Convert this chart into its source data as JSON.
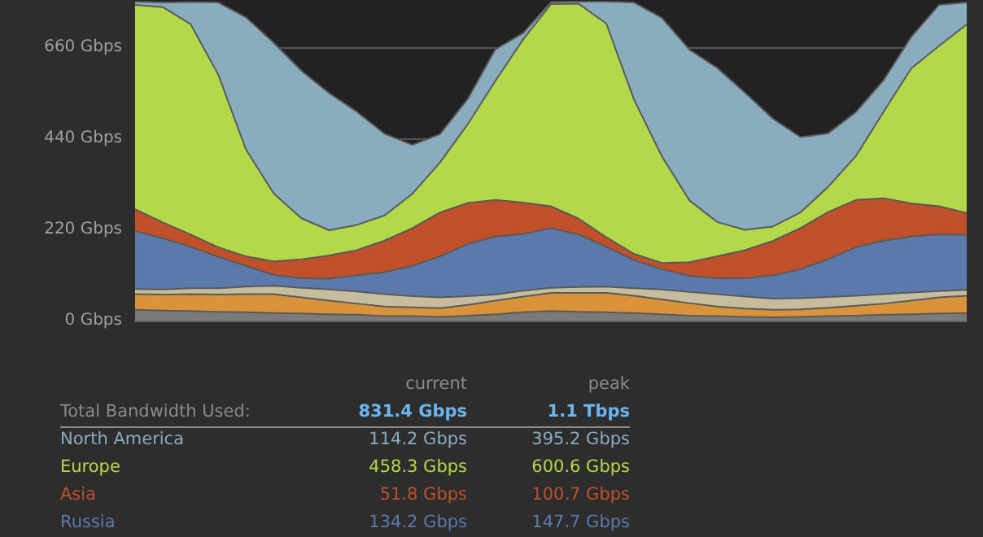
{
  "chart_data": {
    "type": "area",
    "stacked": true,
    "legend": false,
    "grid": "y",
    "tick_labels": "y",
    "marker": "none",
    "categories": [
      null,
      null,
      null,
      null,
      null,
      null,
      null,
      null,
      null,
      null,
      null,
      null,
      null,
      null,
      null,
      null,
      null,
      null,
      null,
      null,
      null,
      null,
      null,
      null,
      null,
      null,
      null,
      null,
      null,
      null,
      null
    ],
    "ylim": [
      0,
      774
    ],
    "yticks": [
      {
        "value": 0,
        "label": "0 Gbps"
      },
      {
        "value": 220,
        "label": "220 Gbps"
      },
      {
        "value": 440,
        "label": "440 Gbps"
      },
      {
        "value": 660,
        "label": "660 Gbps"
      }
    ],
    "series": [
      {
        "color": "#7a7a7a",
        "values": [
          26,
          24,
          23,
          21,
          20,
          18,
          17,
          15,
          14,
          11,
          11,
          9,
          12,
          15,
          20,
          23,
          21,
          20,
          18,
          15,
          12,
          11,
          9,
          8,
          9,
          11,
          12,
          14,
          15,
          17,
          18
        ]
      },
      {
        "color": "#d9933a",
        "values": [
          38,
          39,
          41,
          42,
          44,
          46,
          39,
          33,
          27,
          23,
          21,
          21,
          26,
          33,
          38,
          44,
          46,
          47,
          42,
          36,
          30,
          23,
          20,
          18,
          18,
          20,
          24,
          27,
          33,
          39,
          42
        ]
      },
      {
        "color": "#c5bd9d",
        "values": [
          12,
          12,
          14,
          15,
          18,
          20,
          23,
          27,
          29,
          30,
          27,
          26,
          21,
          15,
          14,
          12,
          14,
          15,
          18,
          24,
          27,
          30,
          29,
          27,
          27,
          26,
          24,
          23,
          20,
          15,
          14
        ]
      },
      {
        "name": "Russia",
        "color": "#5b7aab",
        "values": [
          140,
          124,
          100,
          76,
          50,
          26,
          23,
          26,
          39,
          53,
          73,
          99,
          126,
          140,
          137,
          144,
          127,
          96,
          68,
          49,
          39,
          38,
          44,
          56,
          70,
          91,
          117,
          129,
          135,
          137,
          133
        ]
      },
      {
        "name": "Asia",
        "color": "#c0502a",
        "values": [
          53,
          38,
          30,
          23,
          23,
          33,
          46,
          56,
          61,
          76,
          91,
          106,
          99,
          88,
          76,
          53,
          38,
          23,
          15,
          15,
          33,
          53,
          68,
          83,
          99,
          114,
          114,
          102,
          80,
          68,
          53
        ]
      },
      {
        "name": "Europe",
        "color": "#b3d94a",
        "values": [
          493,
          520,
          508,
          417,
          258,
          164,
          99,
          61,
          61,
          61,
          83,
          121,
          190,
          288,
          394,
          488,
          519,
          516,
          372,
          258,
          149,
          83,
          49,
          35,
          38,
          61,
          106,
          209,
          326,
          387,
          455
        ]
      },
      {
        "name": "North America",
        "color": "#8aacbf",
        "values": [
          8,
          11,
          53,
          174,
          319,
          364,
          356,
          331,
          273,
          197,
          118,
          68,
          61,
          76,
          15,
          5,
          5,
          53,
          235,
          334,
          364,
          372,
          331,
          261,
          182,
          129,
          106,
          76,
          76,
          99,
          53
        ]
      }
    ],
    "annotations": [
      "current",
      "peak",
      "Total Bandwidth Used:",
      "831.4 Gbps",
      "1.1 Tbps",
      "114.2 Gbps",
      "395.2 Gbps",
      "458.3 Gbps",
      "600.6 Gbps",
      "51.8 Gbps",
      "100.7 Gbps",
      "134.2 Gbps",
      "147.7 Gbps"
    ]
  }
}
